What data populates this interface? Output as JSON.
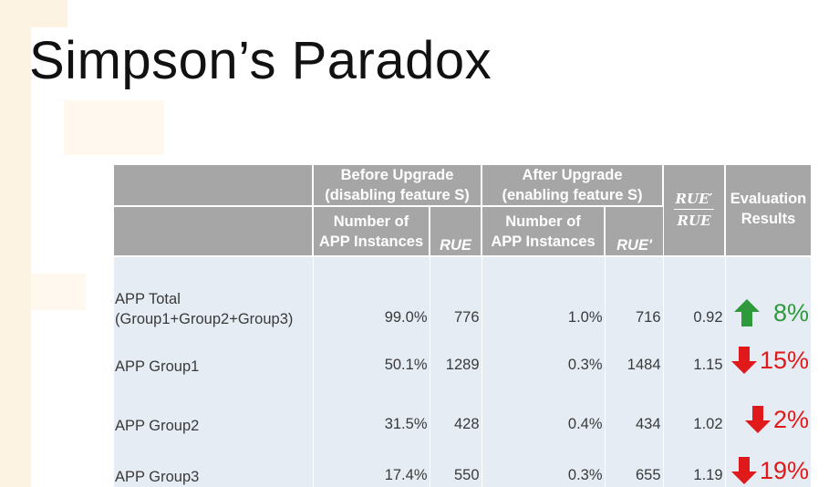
{
  "slide": {
    "title": "Simpson’s Paradox"
  },
  "table": {
    "header": {
      "before_upgrade": "Before Upgrade",
      "before_sub": "(disabling feature S)",
      "after_upgrade": "After Upgrade",
      "after_sub": "(enabling feature S)",
      "ratio_num": "RUE′",
      "ratio_den": "RUE",
      "evaluation_line1": "Evaluation",
      "evaluation_line2": "Results",
      "num_instances_line1": "Number of",
      "num_instances_line2": "APP Instances",
      "rue": "RUE",
      "rue_prime": "RUE'"
    },
    "rows": [
      {
        "label_line1": "APP Total",
        "label_line2": "(Group1+Group2+Group3)",
        "before_pct": "99.0%",
        "before_rue": "776",
        "after_pct": "1.0%",
        "after_rue": "716",
        "ratio": "0.92",
        "eval": "8%",
        "direction": "up",
        "color": "#2f9a3c"
      },
      {
        "label_line1": "APP Group1",
        "before_pct": "50.1%",
        "before_rue": "1289",
        "after_pct": "0.3%",
        "after_rue": "1484",
        "ratio": "1.15",
        "eval": "15%",
        "direction": "down",
        "color": "#e01a1a"
      },
      {
        "label_line1": "APP Group2",
        "before_pct": "31.5%",
        "before_rue": "428",
        "after_pct": "0.4%",
        "after_rue": "434",
        "ratio": "1.02",
        "eval": "2%",
        "direction": "down",
        "color": "#e01a1a"
      },
      {
        "label_line1": "APP Group3",
        "before_pct": "17.4%",
        "before_rue": "550",
        "after_pct": "0.3%",
        "after_rue": "655",
        "ratio": "1.19",
        "eval": "19%",
        "direction": "down",
        "color": "#e01a1a"
      }
    ]
  }
}
